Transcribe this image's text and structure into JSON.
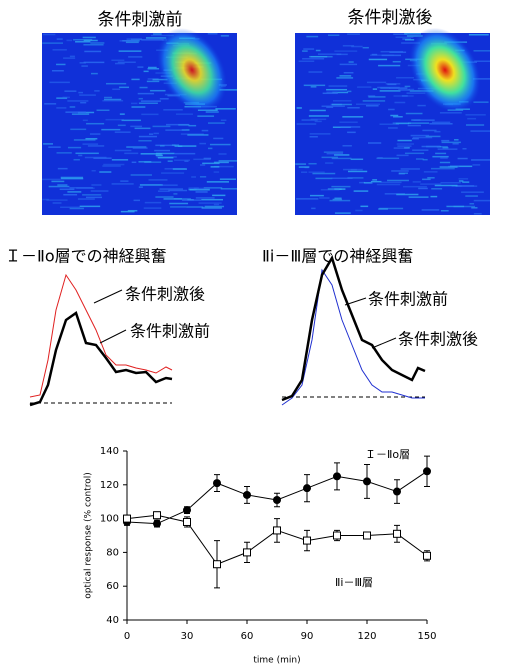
{
  "images": {
    "before": "条件刺激前",
    "after": "条件刺激後"
  },
  "traces": [
    {
      "title": "Ｉ－Ⅱo層での神経興奮",
      "labels": [
        "条件刺激後",
        "条件刺激前"
      ]
    },
    {
      "title": "Ⅱi－Ⅲ層での神経興奮",
      "labels": [
        "条件刺激前",
        "条件刺激後"
      ]
    }
  ],
  "chart_data": {
    "type": "line",
    "x_label": "time (min)",
    "y_label": "optical response (% control)",
    "x": [
      0,
      15,
      30,
      45,
      60,
      75,
      90,
      105,
      120,
      135,
      150
    ],
    "series": [
      {
        "name": "Ｉ－Ⅱo層",
        "color": "#000000",
        "marker": "filled-circle",
        "values": [
          98,
          97,
          105,
          121,
          114,
          111,
          118,
          125,
          122,
          116,
          128
        ],
        "errors": [
          2,
          2,
          2,
          5,
          5,
          4,
          8,
          8,
          10,
          7,
          9
        ]
      },
      {
        "name": "Ⅱi－Ⅲ層",
        "color": "#000000",
        "marker": "open-square",
        "values": [
          100,
          102,
          98,
          73,
          80,
          93,
          87,
          90,
          90,
          91,
          78
        ],
        "errors": [
          2,
          2,
          3,
          14,
          6,
          7,
          6,
          3,
          2,
          5,
          3
        ]
      }
    ],
    "xlim": [
      0,
      150
    ],
    "ylim": [
      40,
      140
    ],
    "xticks": [
      0,
      30,
      60,
      90,
      120,
      150
    ],
    "yticks": [
      40,
      60,
      80,
      100,
      120,
      140
    ]
  }
}
